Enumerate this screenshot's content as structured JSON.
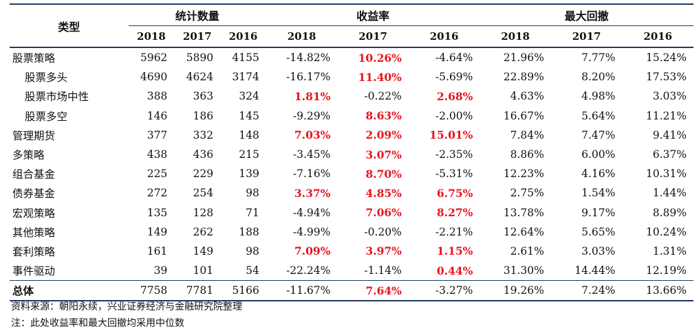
{
  "header": {
    "type_label": "类型",
    "groups": [
      "统计数量",
      "收益率",
      "最大回撤"
    ],
    "years": [
      "2018",
      "2017",
      "2016"
    ]
  },
  "rows": [
    {
      "name": "股票策略",
      "indent": false,
      "counts": [
        "5962",
        "5890",
        "4155"
      ],
      "returns": [
        "-14.82%",
        "10.26%",
        "-4.64%"
      ],
      "returns_red": [
        false,
        true,
        false
      ],
      "drawdowns": [
        "21.96%",
        "7.77%",
        "15.24%"
      ]
    },
    {
      "name": "股票多头",
      "indent": true,
      "counts": [
        "4690",
        "4624",
        "3174"
      ],
      "returns": [
        "-16.17%",
        "11.40%",
        "-5.69%"
      ],
      "returns_red": [
        false,
        true,
        false
      ],
      "drawdowns": [
        "22.89%",
        "8.20%",
        "17.53%"
      ]
    },
    {
      "name": "股票市场中性",
      "indent": true,
      "counts": [
        "388",
        "363",
        "324"
      ],
      "returns": [
        "1.81%",
        "-0.22%",
        "2.68%"
      ],
      "returns_red": [
        true,
        false,
        true
      ],
      "drawdowns": [
        "4.63%",
        "4.98%",
        "3.03%"
      ]
    },
    {
      "name": "股票多空",
      "indent": true,
      "counts": [
        "146",
        "186",
        "145"
      ],
      "returns": [
        "-9.29%",
        "8.63%",
        "-2.00%"
      ],
      "returns_red": [
        false,
        true,
        false
      ],
      "drawdowns": [
        "16.67%",
        "5.64%",
        "11.21%"
      ]
    },
    {
      "name": "管理期货",
      "indent": false,
      "counts": [
        "377",
        "332",
        "148"
      ],
      "returns": [
        "7.03%",
        "2.09%",
        "15.01%"
      ],
      "returns_red": [
        true,
        true,
        true
      ],
      "drawdowns": [
        "7.84%",
        "7.47%",
        "9.41%"
      ]
    },
    {
      "name": "多策略",
      "indent": false,
      "counts": [
        "438",
        "436",
        "215"
      ],
      "returns": [
        "-3.45%",
        "3.07%",
        "-2.35%"
      ],
      "returns_red": [
        false,
        true,
        false
      ],
      "drawdowns": [
        "8.86%",
        "6.00%",
        "6.37%"
      ]
    },
    {
      "name": "组合基金",
      "indent": false,
      "counts": [
        "225",
        "229",
        "139"
      ],
      "returns": [
        "-7.16%",
        "8.70%",
        "-5.31%"
      ],
      "returns_red": [
        false,
        true,
        false
      ],
      "drawdowns": [
        "12.23%",
        "4.16%",
        "10.31%"
      ]
    },
    {
      "name": "债券基金",
      "indent": false,
      "counts": [
        "272",
        "254",
        "98"
      ],
      "returns": [
        "3.37%",
        "4.85%",
        "6.75%"
      ],
      "returns_red": [
        true,
        true,
        true
      ],
      "drawdowns": [
        "2.75%",
        "1.54%",
        "1.44%"
      ]
    },
    {
      "name": "宏观策略",
      "indent": false,
      "counts": [
        "135",
        "128",
        "71"
      ],
      "returns": [
        "-4.94%",
        "7.06%",
        "8.27%"
      ],
      "returns_red": [
        false,
        true,
        true
      ],
      "drawdowns": [
        "13.78%",
        "9.17%",
        "8.89%"
      ]
    },
    {
      "name": "其他策略",
      "indent": false,
      "counts": [
        "149",
        "262",
        "188"
      ],
      "returns": [
        "-4.99%",
        "-0.20%",
        "-2.21%"
      ],
      "returns_red": [
        false,
        false,
        false
      ],
      "drawdowns": [
        "12.64%",
        "5.65%",
        "10.24%"
      ]
    },
    {
      "name": "套利策略",
      "indent": false,
      "counts": [
        "161",
        "149",
        "98"
      ],
      "returns": [
        "7.09%",
        "3.97%",
        "1.15%"
      ],
      "returns_red": [
        true,
        true,
        true
      ],
      "drawdowns": [
        "2.61%",
        "3.03%",
        "1.31%"
      ]
    },
    {
      "name": "事件驱动",
      "indent": false,
      "counts": [
        "39",
        "101",
        "54"
      ],
      "returns": [
        "-22.24%",
        "-1.14%",
        "0.44%"
      ],
      "returns_red": [
        false,
        false,
        true
      ],
      "drawdowns": [
        "31.30%",
        "14.44%",
        "12.19%"
      ]
    },
    {
      "name": "总体",
      "indent": false,
      "total": true,
      "counts": [
        "7758",
        "7781",
        "5166"
      ],
      "returns": [
        "-11.67%",
        "7.64%",
        "-3.27%"
      ],
      "returns_red": [
        false,
        true,
        false
      ],
      "drawdowns": [
        "19.26%",
        "7.24%",
        "13.66%"
      ]
    }
  ],
  "colors": {
    "highlight": "#e8141d",
    "rule": "#1f3864"
  },
  "notes": {
    "source": "资料来源：朝阳永续，兴业证券经济与金融研究院整理",
    "note": "注：此处收益率和最大回撤均采用中位数"
  }
}
